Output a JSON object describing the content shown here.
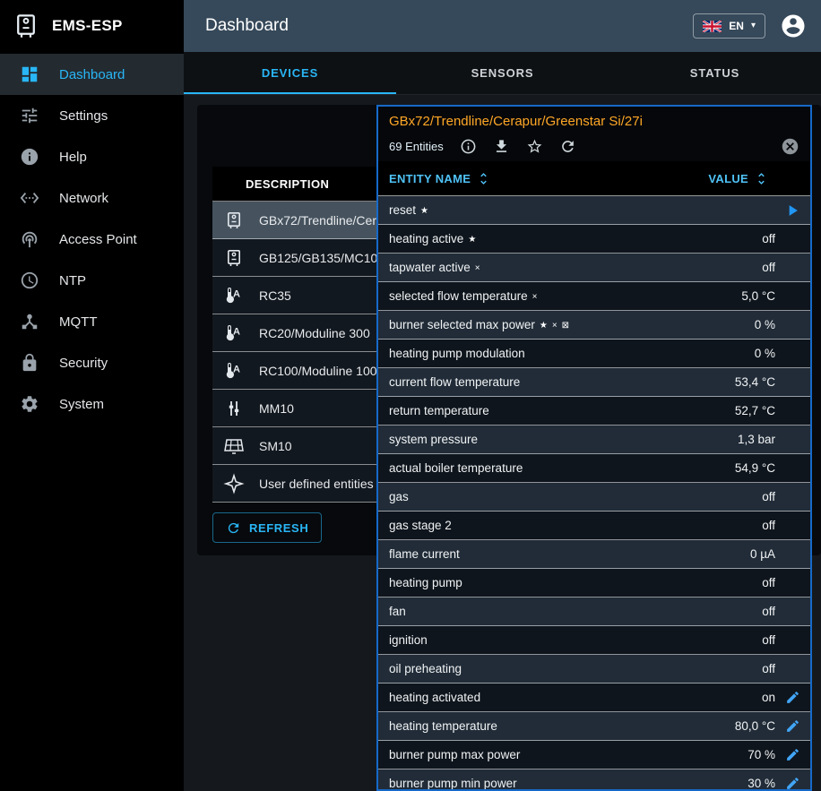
{
  "app": {
    "name": "EMS-ESP",
    "page_title": "Dashboard"
  },
  "header": {
    "language": {
      "label": "EN",
      "flag": "uk-flag"
    }
  },
  "sidebar": {
    "items": [
      {
        "label": "Dashboard",
        "icon": "dashboard",
        "active": true
      },
      {
        "label": "Settings",
        "icon": "tune",
        "active": false
      },
      {
        "label": "Help",
        "icon": "info",
        "active": false
      },
      {
        "label": "Network",
        "icon": "ethernet",
        "active": false
      },
      {
        "label": "Access Point",
        "icon": "wifi-tethering",
        "active": false
      },
      {
        "label": "NTP",
        "icon": "clock",
        "active": false
      },
      {
        "label": "MQTT",
        "icon": "device-hub",
        "active": false
      },
      {
        "label": "Security",
        "icon": "lock",
        "active": false
      },
      {
        "label": "System",
        "icon": "gear",
        "active": false
      }
    ]
  },
  "tabs": [
    {
      "label": "DEVICES",
      "active": true
    },
    {
      "label": "SENSORS",
      "active": false
    },
    {
      "label": "STATUS",
      "active": false
    }
  ],
  "devices": {
    "column_header": "DESCRIPTION",
    "refresh_label": "REFRESH",
    "rows": [
      {
        "label": "GBx72/Trendline/Cerapur/Greenstar Si/27i",
        "icon": "boiler",
        "selected": true
      },
      {
        "label": "GB125/GB135/MC10",
        "icon": "boiler",
        "selected": false
      },
      {
        "label": "RC35",
        "icon": "thermostat",
        "selected": false
      },
      {
        "label": "RC20/Moduline 300",
        "icon": "thermostat",
        "selected": false
      },
      {
        "label": "RC100/Moduline 100",
        "icon": "thermostat",
        "selected": false
      },
      {
        "label": "MM10",
        "icon": "mixer",
        "selected": false
      },
      {
        "label": "SM10",
        "icon": "solar",
        "selected": false
      },
      {
        "label": "User defined entities",
        "icon": "custom",
        "selected": false
      }
    ]
  },
  "dialog": {
    "title": "GBx72/Trendline/Cerapur/Greenstar Si/27i",
    "entities_count": "69 Entities",
    "toolbar_icons": [
      "info",
      "download",
      "star-outline",
      "refresh"
    ],
    "columns": {
      "name": "ENTITY NAME",
      "value": "VALUE"
    },
    "rows": [
      {
        "name": "reset",
        "flags": [
          "star"
        ],
        "value": "",
        "action": "play",
        "editable": false
      },
      {
        "name": "heating active",
        "flags": [
          "star"
        ],
        "value": "off",
        "editable": false
      },
      {
        "name": "tapwater active",
        "flags": [
          "cross"
        ],
        "value": "off",
        "editable": false
      },
      {
        "name": "selected flow temperature",
        "flags": [
          "cross"
        ],
        "value": "5,0 °C",
        "editable": false
      },
      {
        "name": "burner selected max power",
        "flags": [
          "star",
          "cross",
          "no-mqtt"
        ],
        "value": "0 %",
        "editable": false
      },
      {
        "name": "heating pump modulation",
        "flags": [],
        "value": "0 %",
        "editable": false
      },
      {
        "name": "current flow temperature",
        "flags": [],
        "value": "53,4 °C",
        "editable": false
      },
      {
        "name": "return temperature",
        "flags": [],
        "value": "52,7 °C",
        "editable": false
      },
      {
        "name": "system pressure",
        "flags": [],
        "value": "1,3 bar",
        "editable": false
      },
      {
        "name": "actual boiler temperature",
        "flags": [],
        "value": "54,9 °C",
        "editable": false
      },
      {
        "name": "gas",
        "flags": [],
        "value": "off",
        "editable": false
      },
      {
        "name": "gas stage 2",
        "flags": [],
        "value": "off",
        "editable": false
      },
      {
        "name": "flame current",
        "flags": [],
        "value": "0 µA",
        "editable": false
      },
      {
        "name": "heating pump",
        "flags": [],
        "value": "off",
        "editable": false
      },
      {
        "name": "fan",
        "flags": [],
        "value": "off",
        "editable": false
      },
      {
        "name": "ignition",
        "flags": [],
        "value": "off",
        "editable": false
      },
      {
        "name": "oil preheating",
        "flags": [],
        "value": "off",
        "editable": false
      },
      {
        "name": "heating activated",
        "flags": [],
        "value": "on",
        "editable": true
      },
      {
        "name": "heating temperature",
        "flags": [],
        "value": "80,0 °C",
        "editable": true
      },
      {
        "name": "burner pump max power",
        "flags": [],
        "value": "70 %",
        "editable": true
      },
      {
        "name": "burner pump min power",
        "flags": [],
        "value": "30 %",
        "editable": true
      }
    ]
  },
  "colors": {
    "accent_blue": "#29b6f6",
    "header_bg": "#36495a",
    "dialog_border": "#1669c9",
    "dialog_title_orange": "#ffa726",
    "row_even": "#212c38",
    "row_odd": "#0e151d"
  }
}
